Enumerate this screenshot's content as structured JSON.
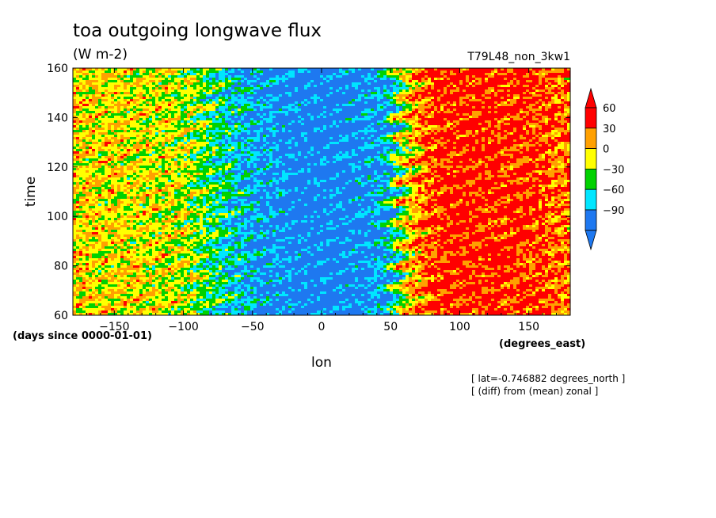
{
  "chart_data": {
    "type": "heatmap",
    "title": "toa outgoing longwave flux",
    "subtitle": "(W m-2)",
    "run_label": "T79L48_non_3kw1",
    "xlabel": "lon",
    "xunits": "(degrees_east)",
    "ylabel": "time",
    "yunits": "(days since 0000-01-01)",
    "xlim": [
      -180,
      180
    ],
    "ylim": [
      60,
      160
    ],
    "xticks": [
      -150,
      -100,
      -50,
      0,
      50,
      100,
      150
    ],
    "yticks": [
      60,
      80,
      100,
      120,
      140,
      160
    ],
    "colorbar": {
      "levels": [
        -90,
        -60,
        -30,
        0,
        30,
        60
      ],
      "colors": [
        "#1e78f0",
        "#00e6ff",
        "#00d200",
        "#ffff00",
        "#ffa000",
        "#ff0000"
      ],
      "extend": "both"
    },
    "annotations": [
      "[ lat=-0.746882 degrees_north ]",
      "[ (diff) from (mean) zonal ]"
    ],
    "zonal_profile": {
      "lon": [
        -180,
        -150,
        -120,
        -100,
        -80,
        -60,
        -40,
        -20,
        0,
        20,
        40,
        50,
        60,
        80,
        100,
        120,
        150,
        180
      ],
      "anomaly": [
        25,
        20,
        15,
        10,
        -20,
        -50,
        -70,
        -80,
        -85,
        -80,
        -70,
        -50,
        20,
        70,
        75,
        75,
        70,
        50
      ]
    }
  }
}
